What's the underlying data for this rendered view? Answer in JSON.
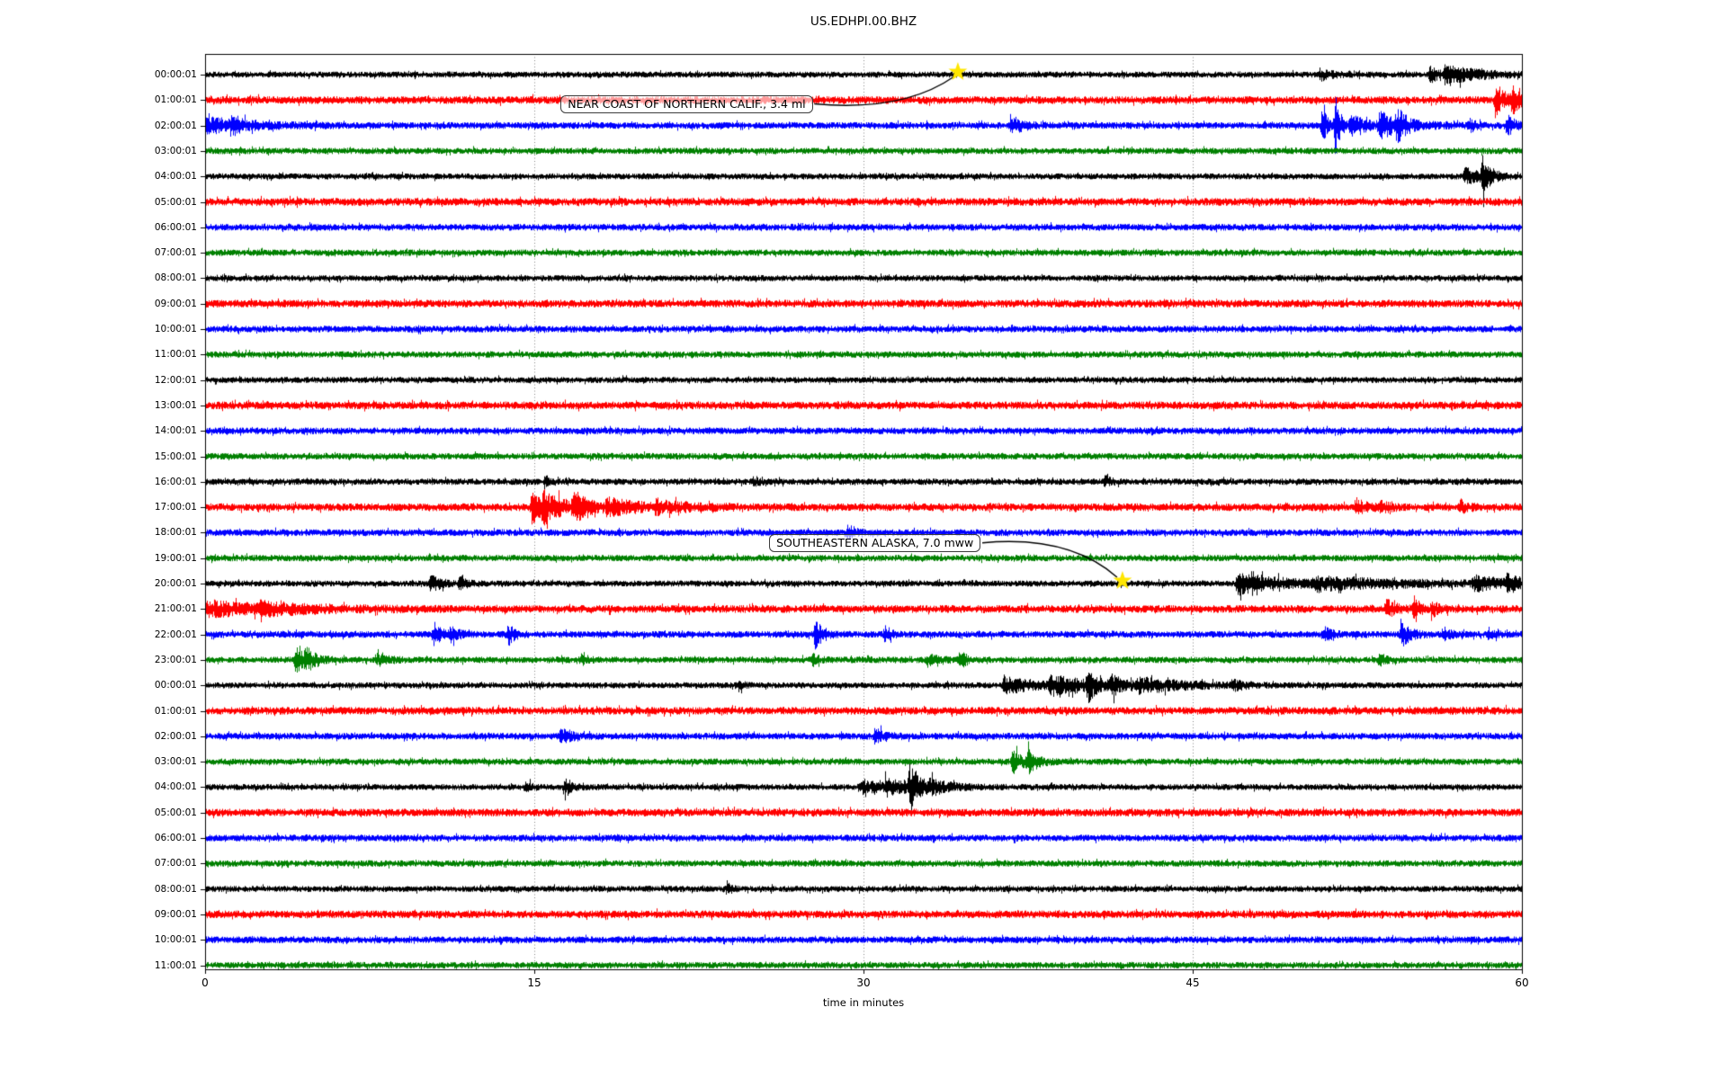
{
  "title": "US.EDHPI.00.BHZ",
  "chart_data": {
    "type": "line",
    "subtype": "helicorder-dayplot",
    "title": "US.EDHPI.00.BHZ",
    "xlabel": "time in minutes",
    "x_ticks": [
      0,
      15,
      30,
      45,
      60
    ],
    "x_range": [
      0,
      60
    ],
    "grid_minutes": [
      15,
      30,
      45
    ],
    "grid_style": "dotted-vertical",
    "minutes_per_row": 60,
    "color_cycle": [
      "#000000",
      "#ff0000",
      "#0000ff",
      "#008000"
    ],
    "star_color": "#ffe600",
    "rows": [
      {
        "label": "00:00:01",
        "color": "#000000",
        "noise": 0.95,
        "events": [
          {
            "t": 50.8,
            "d": 0.5,
            "a": 1.5
          },
          {
            "t": 55.8,
            "d": 0.4,
            "a": 2.2
          },
          {
            "t": 56.5,
            "d": 1.3,
            "a": 3.0
          }
        ]
      },
      {
        "label": "01:00:01",
        "color": "#ff0000",
        "noise": 1.2,
        "events": [
          {
            "t": 58.8,
            "d": 0.8,
            "a": 2.4
          },
          {
            "t": 59.6,
            "d": 0.4,
            "a": 2.0
          }
        ]
      },
      {
        "label": "02:00:01",
        "color": "#0000ff",
        "noise": 1.05,
        "events": [
          {
            "t": 0.0,
            "d": 1.8,
            "a": 2.2
          },
          {
            "t": 1.2,
            "d": 0.3,
            "a": 2.4
          },
          {
            "t": 36.7,
            "d": 0.5,
            "a": 2.8
          },
          {
            "t": 50.9,
            "d": 0.25,
            "a": 4.5
          },
          {
            "t": 51.5,
            "d": 0.2,
            "a": 8.5
          },
          {
            "t": 52.2,
            "d": 0.8,
            "a": 2.5
          },
          {
            "t": 53.5,
            "d": 1.0,
            "a": 3.2
          },
          {
            "t": 54.3,
            "d": 0.4,
            "a": 3.5
          },
          {
            "t": 57.6,
            "d": 0.2,
            "a": 2.2
          },
          {
            "t": 59.3,
            "d": 0.3,
            "a": 3.0
          }
        ]
      },
      {
        "label": "03:00:01",
        "color": "#008000",
        "noise": 1.0,
        "events": []
      },
      {
        "label": "04:00:01",
        "color": "#000000",
        "noise": 0.95,
        "events": [
          {
            "t": 57.4,
            "d": 0.6,
            "a": 2.5
          },
          {
            "t": 58.2,
            "d": 0.35,
            "a": 5.5
          }
        ]
      },
      {
        "label": "05:00:01",
        "color": "#ff0000",
        "noise": 1.2,
        "events": []
      },
      {
        "label": "06:00:01",
        "color": "#0000ff",
        "noise": 1.05,
        "events": []
      },
      {
        "label": "07:00:01",
        "color": "#008000",
        "noise": 1.0,
        "events": []
      },
      {
        "label": "08:00:01",
        "color": "#000000",
        "noise": 0.95,
        "events": []
      },
      {
        "label": "09:00:01",
        "color": "#ff0000",
        "noise": 1.2,
        "events": []
      },
      {
        "label": "10:00:01",
        "color": "#0000ff",
        "noise": 1.05,
        "events": []
      },
      {
        "label": "11:00:01",
        "color": "#008000",
        "noise": 1.0,
        "events": []
      },
      {
        "label": "12:00:01",
        "color": "#000000",
        "noise": 0.95,
        "events": []
      },
      {
        "label": "13:00:01",
        "color": "#ff0000",
        "noise": 1.2,
        "events": []
      },
      {
        "label": "14:00:01",
        "color": "#0000ff",
        "noise": 1.05,
        "events": []
      },
      {
        "label": "15:00:01",
        "color": "#008000",
        "noise": 1.0,
        "events": []
      },
      {
        "label": "16:00:01",
        "color": "#000000",
        "noise": 1.0,
        "events": [
          {
            "t": 15.5,
            "d": 0.3,
            "a": 1.3
          },
          {
            "t": 25.0,
            "d": 0.2,
            "a": 1.1
          },
          {
            "t": 41.0,
            "d": 0.3,
            "a": 1.2
          }
        ]
      },
      {
        "label": "17:00:01",
        "color": "#ff0000",
        "noise": 1.2,
        "events": [
          {
            "t": 14.9,
            "d": 0.35,
            "a": 5.5
          },
          {
            "t": 15.4,
            "d": 1.2,
            "a": 3.0
          },
          {
            "t": 16.8,
            "d": 0.6,
            "a": 3.2
          },
          {
            "t": 18.3,
            "d": 1.5,
            "a": 1.6
          },
          {
            "t": 20.5,
            "d": 1.5,
            "a": 1.0
          },
          {
            "t": 52.4,
            "d": 0.4,
            "a": 2.0
          },
          {
            "t": 53.6,
            "d": 0.3,
            "a": 1.6
          },
          {
            "t": 57.2,
            "d": 0.3,
            "a": 1.5
          }
        ]
      },
      {
        "label": "18:00:01",
        "color": "#0000ff",
        "noise": 1.05,
        "events": [
          {
            "t": 29.3,
            "d": 0.3,
            "a": 1.8
          }
        ]
      },
      {
        "label": "19:00:01",
        "color": "#008000",
        "noise": 1.0,
        "events": []
      },
      {
        "label": "20:00:01",
        "color": "#000000",
        "noise": 0.95,
        "events": [
          {
            "t": 10.3,
            "d": 0.4,
            "a": 2.8
          },
          {
            "t": 11.6,
            "d": 0.25,
            "a": 2.0
          },
          {
            "t": 47.0,
            "d": 2.2,
            "a": 3.0
          },
          {
            "t": 50.5,
            "d": 4.5,
            "a": 1.5
          },
          {
            "t": 57.8,
            "d": 1.0,
            "a": 2.2
          },
          {
            "t": 59.3,
            "d": 0.6,
            "a": 2.4
          }
        ]
      },
      {
        "label": "21:00:01",
        "color": "#ff0000",
        "noise": 1.2,
        "events": [
          {
            "t": 0.0,
            "d": 3.0,
            "a": 1.6
          },
          {
            "t": 2.5,
            "d": 2.0,
            "a": 0.8
          },
          {
            "t": 53.8,
            "d": 0.4,
            "a": 2.2
          },
          {
            "t": 55.1,
            "d": 0.2,
            "a": 3.4
          },
          {
            "t": 55.9,
            "d": 0.3,
            "a": 1.8
          }
        ]
      },
      {
        "label": "22:00:01",
        "color": "#0000ff",
        "noise": 1.05,
        "events": [
          {
            "t": 10.4,
            "d": 0.4,
            "a": 2.6
          },
          {
            "t": 11.2,
            "d": 0.3,
            "a": 1.8
          },
          {
            "t": 13.8,
            "d": 0.25,
            "a": 3.2
          },
          {
            "t": 27.8,
            "d": 0.35,
            "a": 3.8
          },
          {
            "t": 31.0,
            "d": 0.2,
            "a": 2.4
          },
          {
            "t": 51.0,
            "d": 0.3,
            "a": 2.0
          },
          {
            "t": 54.5,
            "d": 0.4,
            "a": 3.2
          },
          {
            "t": 56.4,
            "d": 0.3,
            "a": 1.8
          },
          {
            "t": 58.5,
            "d": 0.3,
            "a": 1.5
          }
        ]
      },
      {
        "label": "23:00:01",
        "color": "#008000",
        "noise": 1.0,
        "events": [
          {
            "t": 4.1,
            "d": 0.5,
            "a": 4.2
          },
          {
            "t": 4.6,
            "d": 0.3,
            "a": 2.5
          },
          {
            "t": 7.8,
            "d": 0.5,
            "a": 1.6
          },
          {
            "t": 17.1,
            "d": 0.3,
            "a": 1.5
          },
          {
            "t": 27.7,
            "d": 0.3,
            "a": 1.4
          },
          {
            "t": 32.9,
            "d": 0.5,
            "a": 1.5
          },
          {
            "t": 34.4,
            "d": 0.25,
            "a": 2.8
          },
          {
            "t": 53.5,
            "d": 0.4,
            "a": 1.4
          }
        ]
      },
      {
        "label": "00:00:01",
        "color": "#000000",
        "noise": 0.95,
        "events": [
          {
            "t": 24.3,
            "d": 0.2,
            "a": 1.4
          },
          {
            "t": 36.4,
            "d": 1.5,
            "a": 2.4
          },
          {
            "t": 38.5,
            "d": 2.0,
            "a": 2.6
          },
          {
            "t": 40.2,
            "d": 0.3,
            "a": 4.5
          },
          {
            "t": 41.3,
            "d": 0.4,
            "a": 2.8
          },
          {
            "t": 42.5,
            "d": 2.0,
            "a": 1.8
          },
          {
            "t": 46.8,
            "d": 0.4,
            "a": 1.6
          }
        ]
      },
      {
        "label": "01:00:01",
        "color": "#ff0000",
        "noise": 1.2,
        "events": []
      },
      {
        "label": "02:00:01",
        "color": "#0000ff",
        "noise": 1.05,
        "events": [
          {
            "t": 16.2,
            "d": 0.5,
            "a": 1.7
          },
          {
            "t": 30.5,
            "d": 0.5,
            "a": 1.9
          }
        ]
      },
      {
        "label": "03:00:01",
        "color": "#008000",
        "noise": 1.0,
        "events": [
          {
            "t": 36.8,
            "d": 0.5,
            "a": 3.2
          },
          {
            "t": 37.5,
            "d": 0.4,
            "a": 2.6
          }
        ]
      },
      {
        "label": "04:00:01",
        "color": "#000000",
        "noise": 0.95,
        "events": [
          {
            "t": 14.6,
            "d": 0.25,
            "a": 2.2
          },
          {
            "t": 16.4,
            "d": 0.3,
            "a": 2.8
          },
          {
            "t": 29.8,
            "d": 1.2,
            "a": 1.8
          },
          {
            "t": 31.0,
            "d": 1.2,
            "a": 2.0
          },
          {
            "t": 32.1,
            "d": 0.4,
            "a": 6.0
          },
          {
            "t": 33.0,
            "d": 0.8,
            "a": 1.8
          }
        ]
      },
      {
        "label": "05:00:01",
        "color": "#ff0000",
        "noise": 1.2,
        "events": []
      },
      {
        "label": "06:00:01",
        "color": "#0000ff",
        "noise": 1.05,
        "events": []
      },
      {
        "label": "07:00:01",
        "color": "#008000",
        "noise": 1.0,
        "events": []
      },
      {
        "label": "08:00:01",
        "color": "#000000",
        "noise": 0.95,
        "events": [
          {
            "t": 23.8,
            "d": 0.2,
            "a": 1.4
          }
        ]
      },
      {
        "label": "09:00:01",
        "color": "#ff0000",
        "noise": 1.2,
        "events": []
      },
      {
        "label": "10:00:01",
        "color": "#0000ff",
        "noise": 1.05,
        "events": []
      },
      {
        "label": "11:00:01",
        "color": "#008000",
        "noise": 1.0,
        "events": []
      }
    ],
    "annotations": [
      {
        "text": "NEAR COAST OF NORTHERN CALIF., 3.4 ml",
        "star": {
          "row": 0,
          "minute": 34.3
        },
        "box": {
          "minute": 16.2,
          "row": 1.15
        }
      },
      {
        "text": "SOUTHEASTERN ALASKA, 7.0 mww",
        "star": {
          "row": 20,
          "minute": 41.8
        },
        "box": {
          "minute": 25.7,
          "row": 18.4
        }
      }
    ]
  }
}
